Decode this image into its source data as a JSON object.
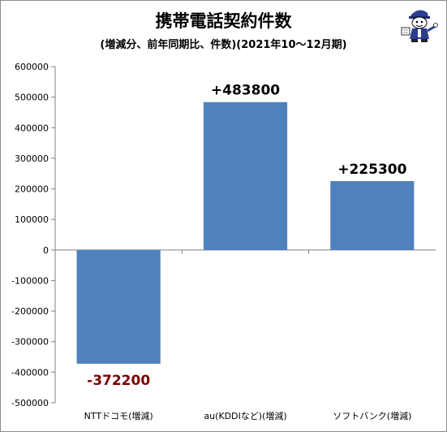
{
  "chart_data": {
    "type": "bar",
    "title": "携帯電話契約件数",
    "subtitle": "(増減分、前年同期比、件数)(2021年10～12月期)",
    "categories": [
      "NTTドコモ(増減)",
      "au(KDDIなど)(増減)",
      "ソフトバンク(増減)"
    ],
    "values": [
      -372200,
      483800,
      225300
    ],
    "data_labels": [
      "-372200",
      "+483800",
      "+225300"
    ],
    "ylim": [
      -500000,
      600000
    ],
    "yticks": [
      "600000",
      "500000",
      "400000",
      "300000",
      "200000",
      "100000",
      "0",
      "-100000",
      "-200000",
      "-300000",
      "-400000",
      "-500000"
    ],
    "ytick_values": [
      600000,
      500000,
      400000,
      300000,
      200000,
      100000,
      0,
      -100000,
      -200000,
      -300000,
      -400000,
      -500000
    ],
    "bar_color": "#4f81bd",
    "positive_label_color": "#000000",
    "negative_label_color": "#7b0000",
    "grid": false,
    "legend": "none"
  },
  "mascot": {
    "icon": "reporter-mascot-icon"
  }
}
